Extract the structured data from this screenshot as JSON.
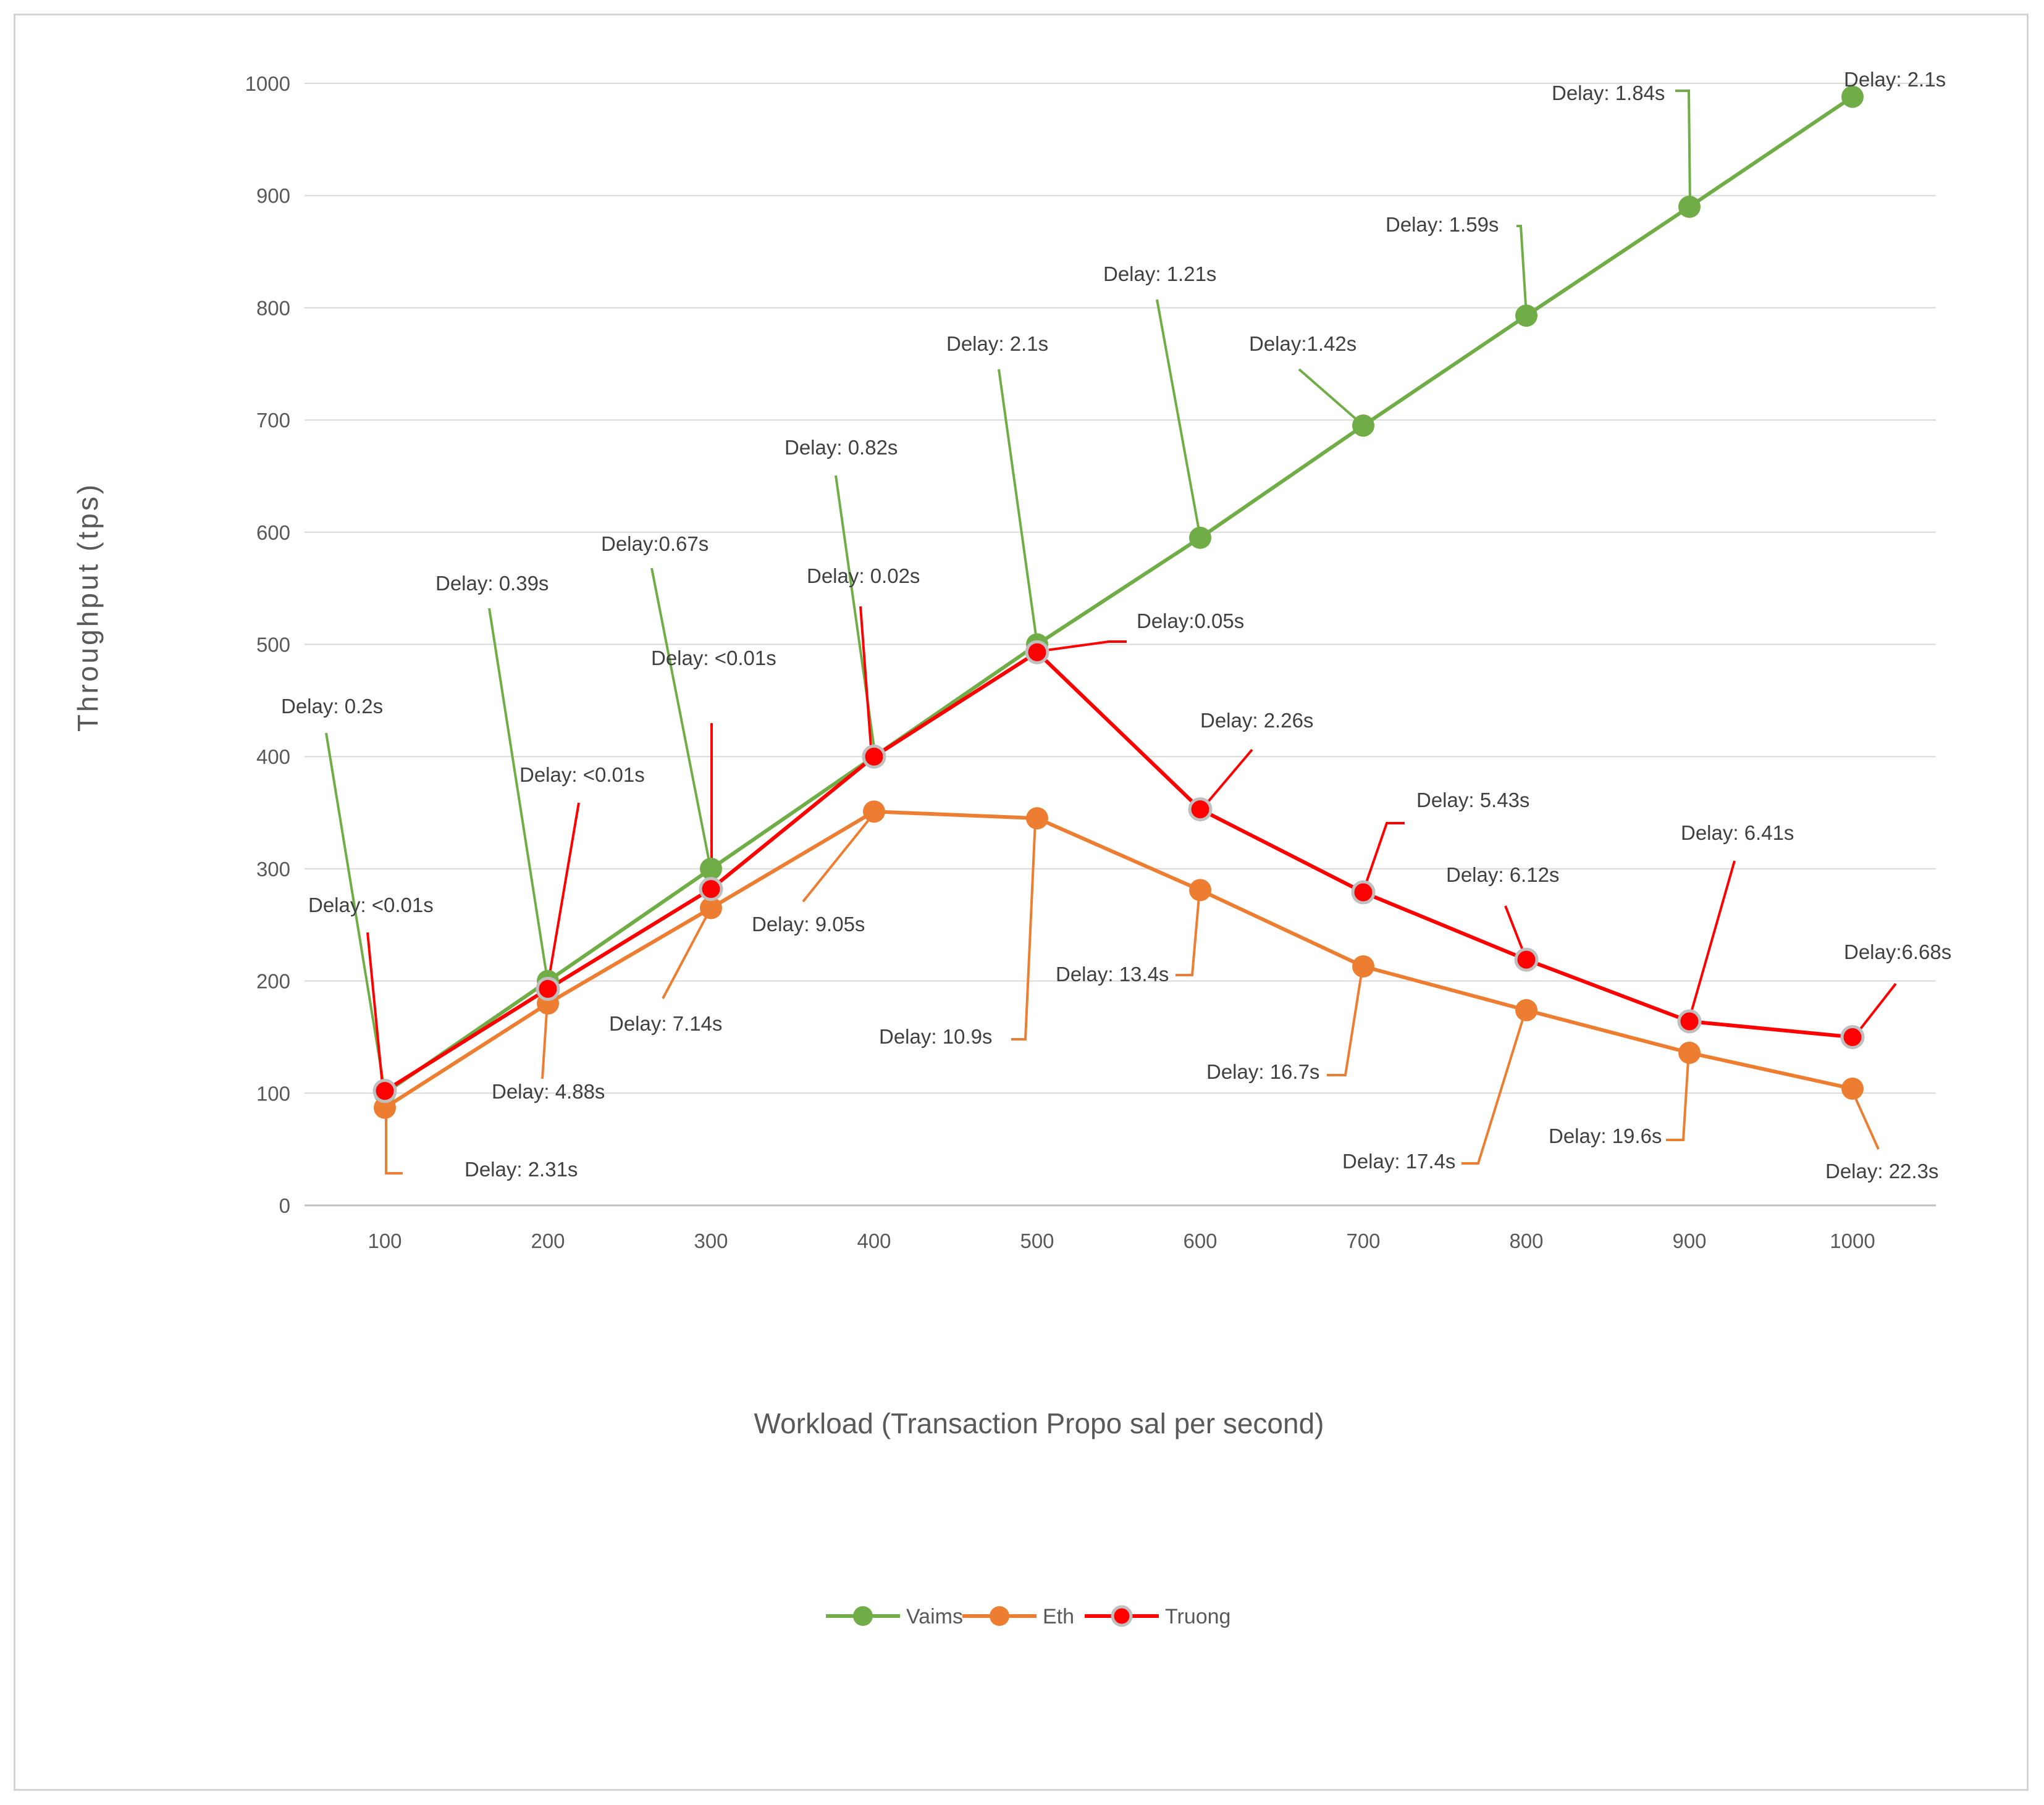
{
  "chart_data": {
    "type": "line",
    "title": "",
    "xlabel": "Workload (Transaction Propo sal per second)",
    "ylabel": "Throughput (tps)",
    "x": [
      100,
      200,
      300,
      400,
      500,
      600,
      700,
      800,
      900,
      1000
    ],
    "ylim": [
      0,
      1000
    ],
    "yticks": [
      0,
      100,
      200,
      300,
      400,
      500,
      600,
      700,
      800,
      900,
      1000
    ],
    "grid": true,
    "legend_position": "bottom",
    "series": [
      {
        "name": "Vaims",
        "color": "#70ad47",
        "values": [
          100,
          200,
          300,
          400,
          500,
          595,
          695,
          793,
          890,
          988
        ],
        "labels": [
          "Delay: 0.2s",
          "Delay: 0.39s",
          "Delay:0.67s",
          "Delay: 0.82s",
          "Delay: 2.1s",
          "Delay: 1.21s",
          "Delay:1.42s",
          "Delay: 1.59s",
          "Delay: 1.84s",
          "Delay: 2.1s"
        ]
      },
      {
        "name": "Eth",
        "color": "#ed7d31",
        "values": [
          87,
          180,
          265,
          351,
          345,
          281,
          213,
          174,
          136,
          104
        ],
        "labels": [
          "Delay: 2.31s",
          "Delay: 4.88s",
          "Delay: 7.14s",
          "Delay: 9.05s",
          "Delay: 10.9s",
          "Delay: 13.4s",
          "Delay: 16.7s",
          "Delay: 17.4s",
          "Delay: 19.6s",
          "Delay: 22.3s"
        ]
      },
      {
        "name": "Truong",
        "color": "#ff0000",
        "values": [
          102,
          193,
          282,
          400,
          493,
          353,
          279,
          219,
          164,
          150
        ],
        "labels": [
          "Delay: <0.01s",
          "Delay: <0.01s",
          "Delay: <0.01s",
          "Delay: 0.02s",
          "Delay:0.05s",
          "Delay: 2.26s",
          "Delay: 5.43s",
          "Delay: 6.12s",
          "Delay: 6.41s",
          "Delay:6.68s"
        ]
      }
    ]
  }
}
